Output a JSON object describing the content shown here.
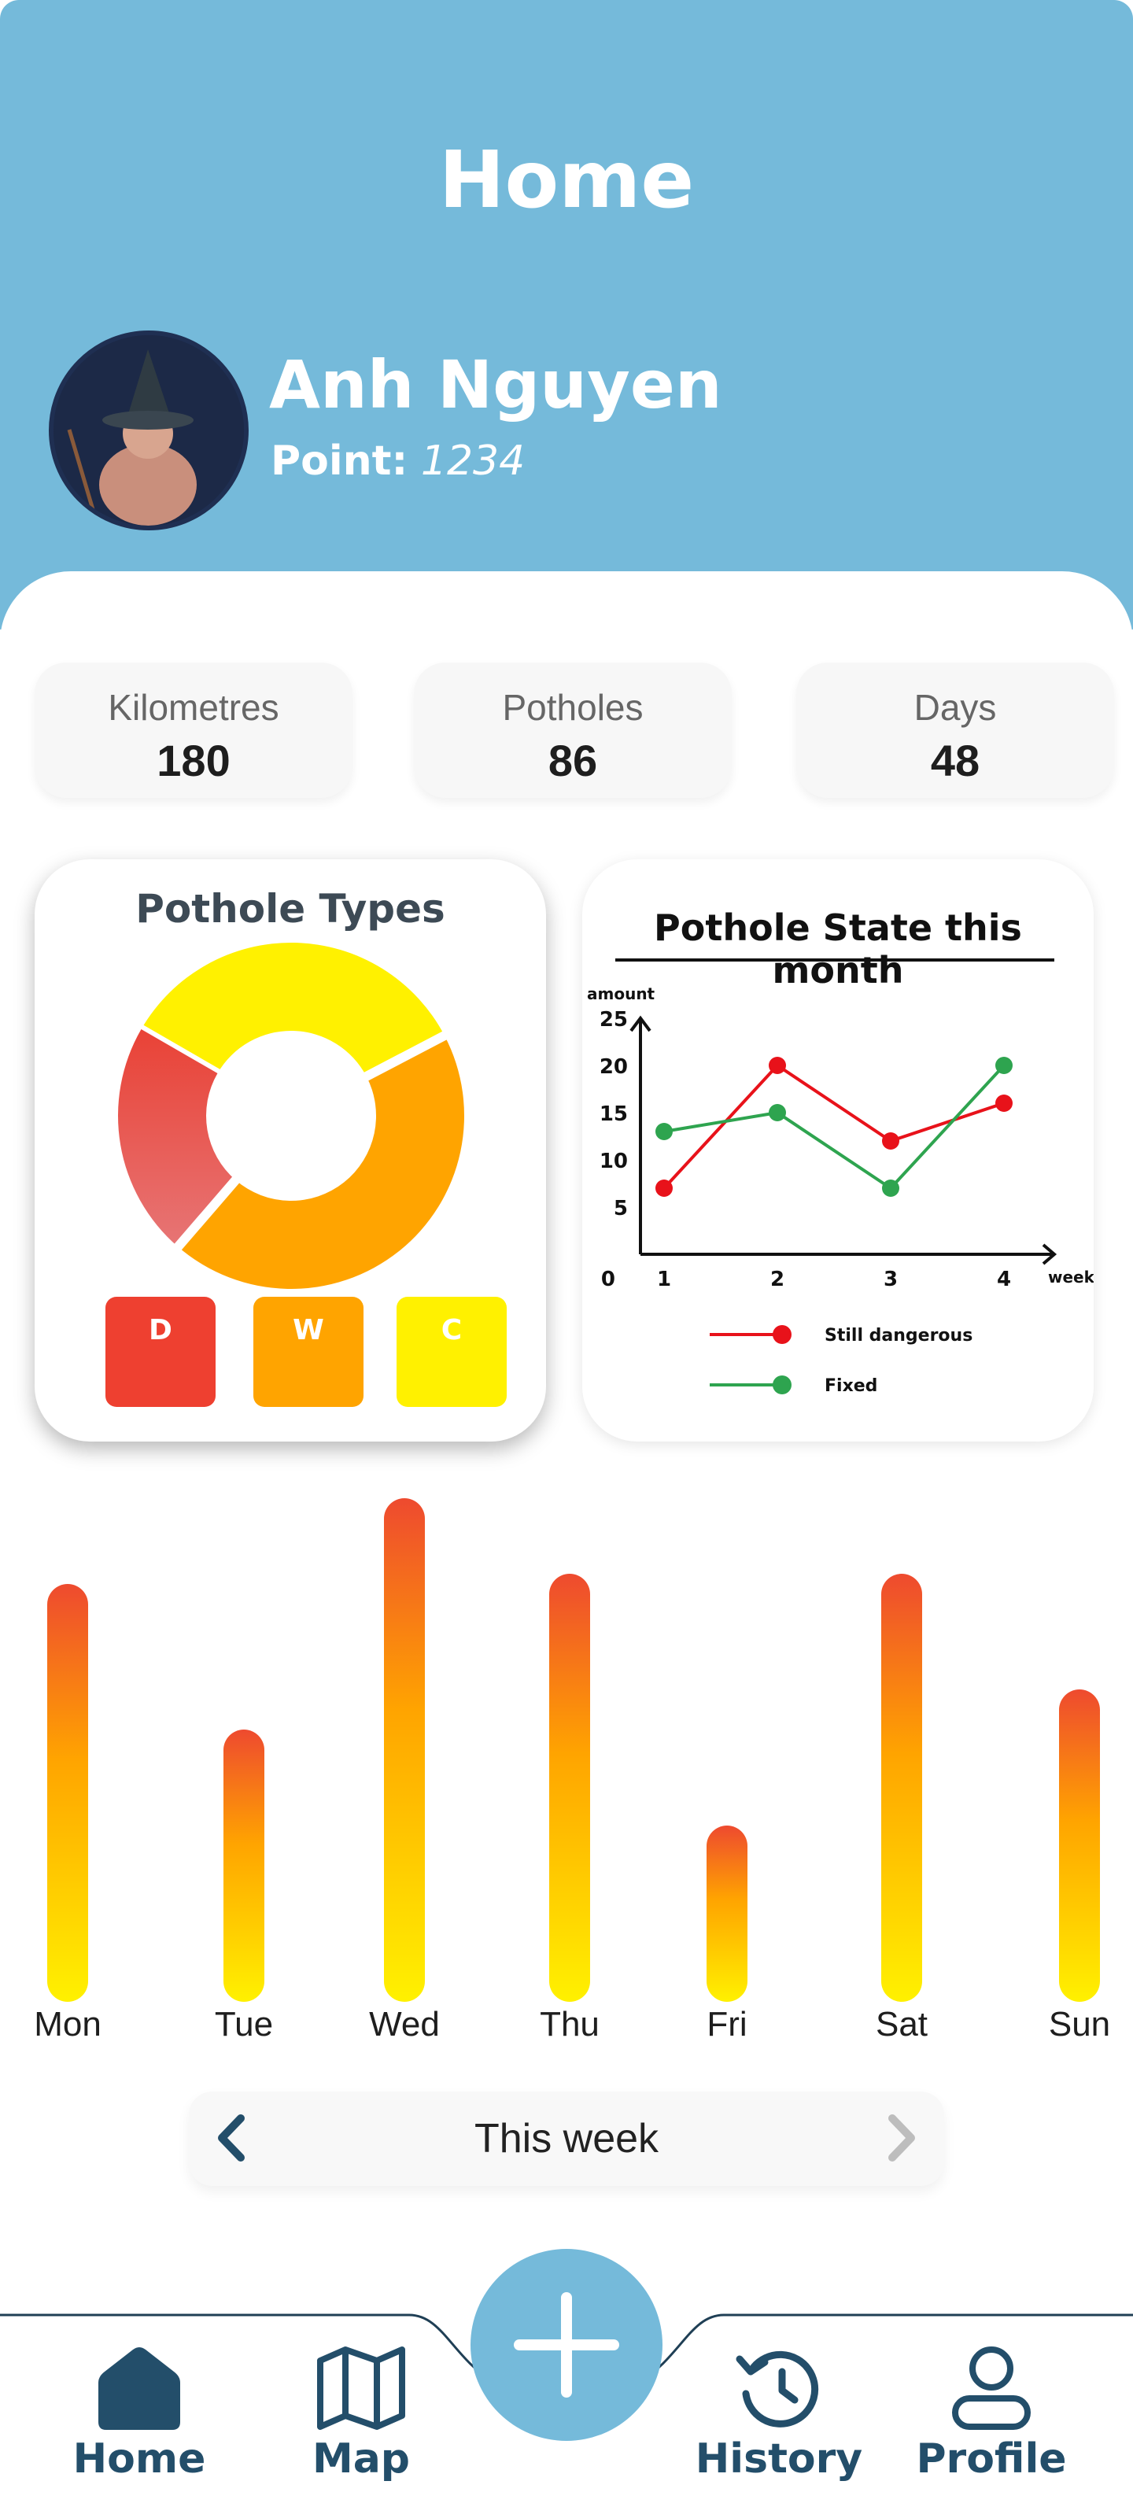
{
  "header": {
    "title": "Home",
    "user_name": "Anh Nguyen",
    "points_label": "Point:",
    "points_value": "1234"
  },
  "stats": [
    {
      "label": "Kilometres",
      "value": "180"
    },
    {
      "label": "Potholes",
      "value": "86"
    },
    {
      "label": "Days",
      "value": "48"
    }
  ],
  "colors": {
    "header_bg": "#75bada",
    "dangerous_red": "#ee4030",
    "warning_orange": "#ffa400",
    "caution_yellow": "#fff100",
    "fixed_green": "#2ea44f",
    "nav_text": "#234e6a"
  },
  "pothole_types_card": {
    "title": "Pothole Types",
    "legend": [
      {
        "label": "D",
        "color": "#ee4030"
      },
      {
        "label": "W",
        "color": "#ffa400"
      },
      {
        "label": "C",
        "color": "#fff100"
      }
    ]
  },
  "pothole_state_card": {
    "title": "Pothole State this month"
  },
  "week_chart": {
    "selector_label": "This week"
  },
  "nav": {
    "home": "Home",
    "map": "Map",
    "history": "History",
    "profile": "Profile"
  },
  "chart_data": [
    {
      "type": "pie",
      "title": "Pothole Types",
      "categories": [
        "D",
        "W",
        "C"
      ],
      "values": [
        22,
        44,
        34
      ],
      "colors": [
        "#ee4030",
        "#ffa400",
        "#fff100"
      ]
    },
    {
      "type": "line",
      "title": "Pothole State this month",
      "xlabel": "week",
      "ylabel": "amount",
      "x": [
        1,
        2,
        3,
        4
      ],
      "xticks": [
        "1",
        "2",
        "3",
        "4"
      ],
      "yticks": [
        "0",
        "5",
        "10",
        "15",
        "20",
        "25"
      ],
      "ylim": [
        0,
        25
      ],
      "series": [
        {
          "name": "Still dangerous",
          "color": "#e8121a",
          "values": [
            7,
            20,
            12,
            16
          ]
        },
        {
          "name": "Fixed",
          "color": "#2ea44f",
          "values": [
            13,
            15,
            7,
            20
          ]
        }
      ],
      "legend": "bottom"
    },
    {
      "type": "bar",
      "categories": [
        "Mon",
        "Tue",
        "Wed",
        "Thu",
        "Fri",
        "Sat",
        "Sun"
      ],
      "values": [
        83,
        54,
        100,
        85,
        35,
        85,
        62
      ],
      "ylim": [
        0,
        100
      ]
    }
  ]
}
